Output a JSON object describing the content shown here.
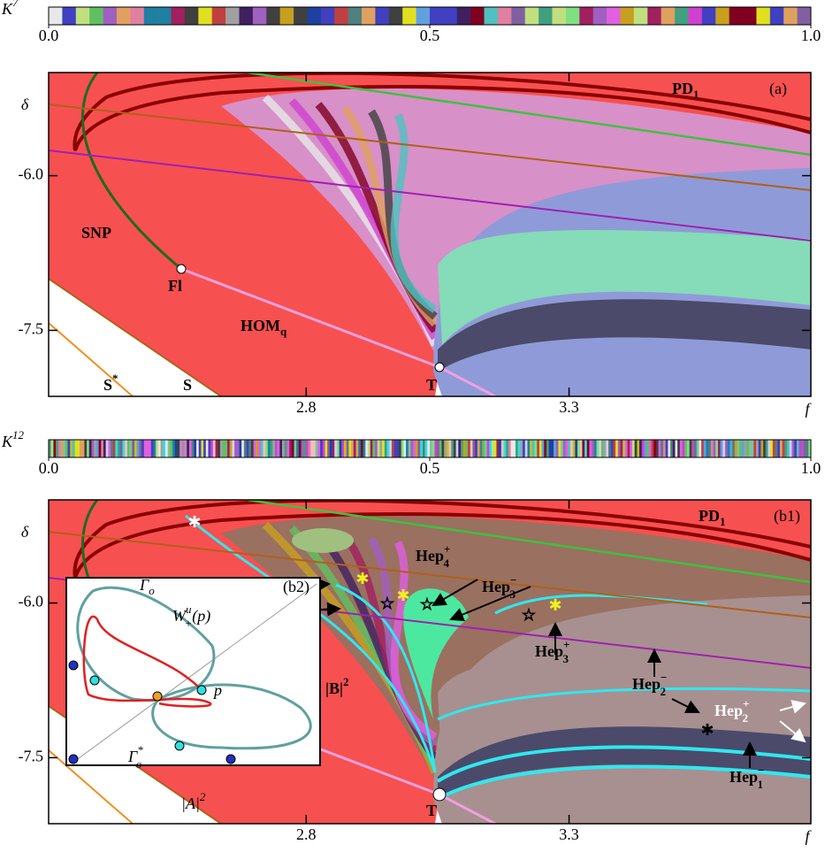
{
  "chart_data": [
    {
      "type": "region",
      "panel": "(a)",
      "colorbar": {
        "label": {
          "text": "K",
          "sup": "7"
        },
        "lim": [
          0,
          1
        ],
        "ticks": [
          {
            "value": 0,
            "label": "0.0"
          },
          0.5,
          {
            "value": 1,
            "label": "1.0"
          }
        ]
      },
      "xlabel": "f",
      "ylabel": "δ",
      "xlim": [
        2.31,
        3.76
      ],
      "ylim": [
        -8.14,
        -5.0
      ],
      "xticks": [
        2.8,
        3.3
      ],
      "yticks": [
        {
          "value": -6,
          "label": "-6.0"
        },
        -7.5
      ],
      "annotations": [
        {
          "text": "PD",
          "sub": "1"
        },
        {
          "text": "SNP"
        },
        {
          "text": "Fl"
        },
        {
          "text": "HOM",
          "sub": "q"
        },
        {
          "text": "S",
          "sup": "*"
        },
        {
          "text": "S"
        },
        {
          "text": "T"
        }
      ]
    },
    {
      "type": "region",
      "panel": "(b1)",
      "colorbar": {
        "label": {
          "text": "K",
          "sup": "12"
        },
        "lim": [
          0,
          1
        ],
        "ticks": [
          {
            "value": 0,
            "label": "0.0"
          },
          0.5,
          {
            "value": 1,
            "label": "1.0"
          }
        ]
      },
      "xlabel": "f",
      "ylabel": "δ",
      "xlim": [
        2.31,
        3.76
      ],
      "ylim": [
        -8.14,
        -5.0
      ],
      "xticks": [
        2.8,
        3.3
      ],
      "yticks": [
        {
          "value": -6,
          "label": "-6.0"
        },
        -7.5
      ],
      "annotations": [
        {
          "text": "PD",
          "sub": "1"
        },
        {
          "text": "Hep"
        },
        {
          "text": "Hep",
          "sup": "−",
          "sub": "4"
        },
        {
          "text": "Hep",
          "sup": "+",
          "sub": "4"
        },
        {
          "text": "Hep",
          "sup": "−",
          "sub": "3"
        },
        {
          "text": "|B|",
          "sup": "2"
        },
        {
          "text": "Hep",
          "sup": "+",
          "sub": "3"
        },
        {
          "text": "Hep",
          "sup": "−",
          "sub": "2"
        },
        {
          "text": "Hep",
          "sup": "+",
          "sub": "2"
        },
        {
          "text": "Hep",
          "sup": "−",
          "sub": "1"
        },
        {
          "text": "T"
        }
      ],
      "inset": {
        "panel": "(b2)",
        "annotations": [
          {
            "text": "Γ",
            "sub": "o"
          },
          {
            "text": "W",
            "sup": "u",
            "sub": "+",
            "tail": "(p)"
          },
          {
            "text": "p"
          },
          {
            "text": "Γ",
            "sup": "*",
            "sub": "o"
          },
          {
            "text": "|A|",
            "sup": "2"
          }
        ]
      }
    }
  ]
}
